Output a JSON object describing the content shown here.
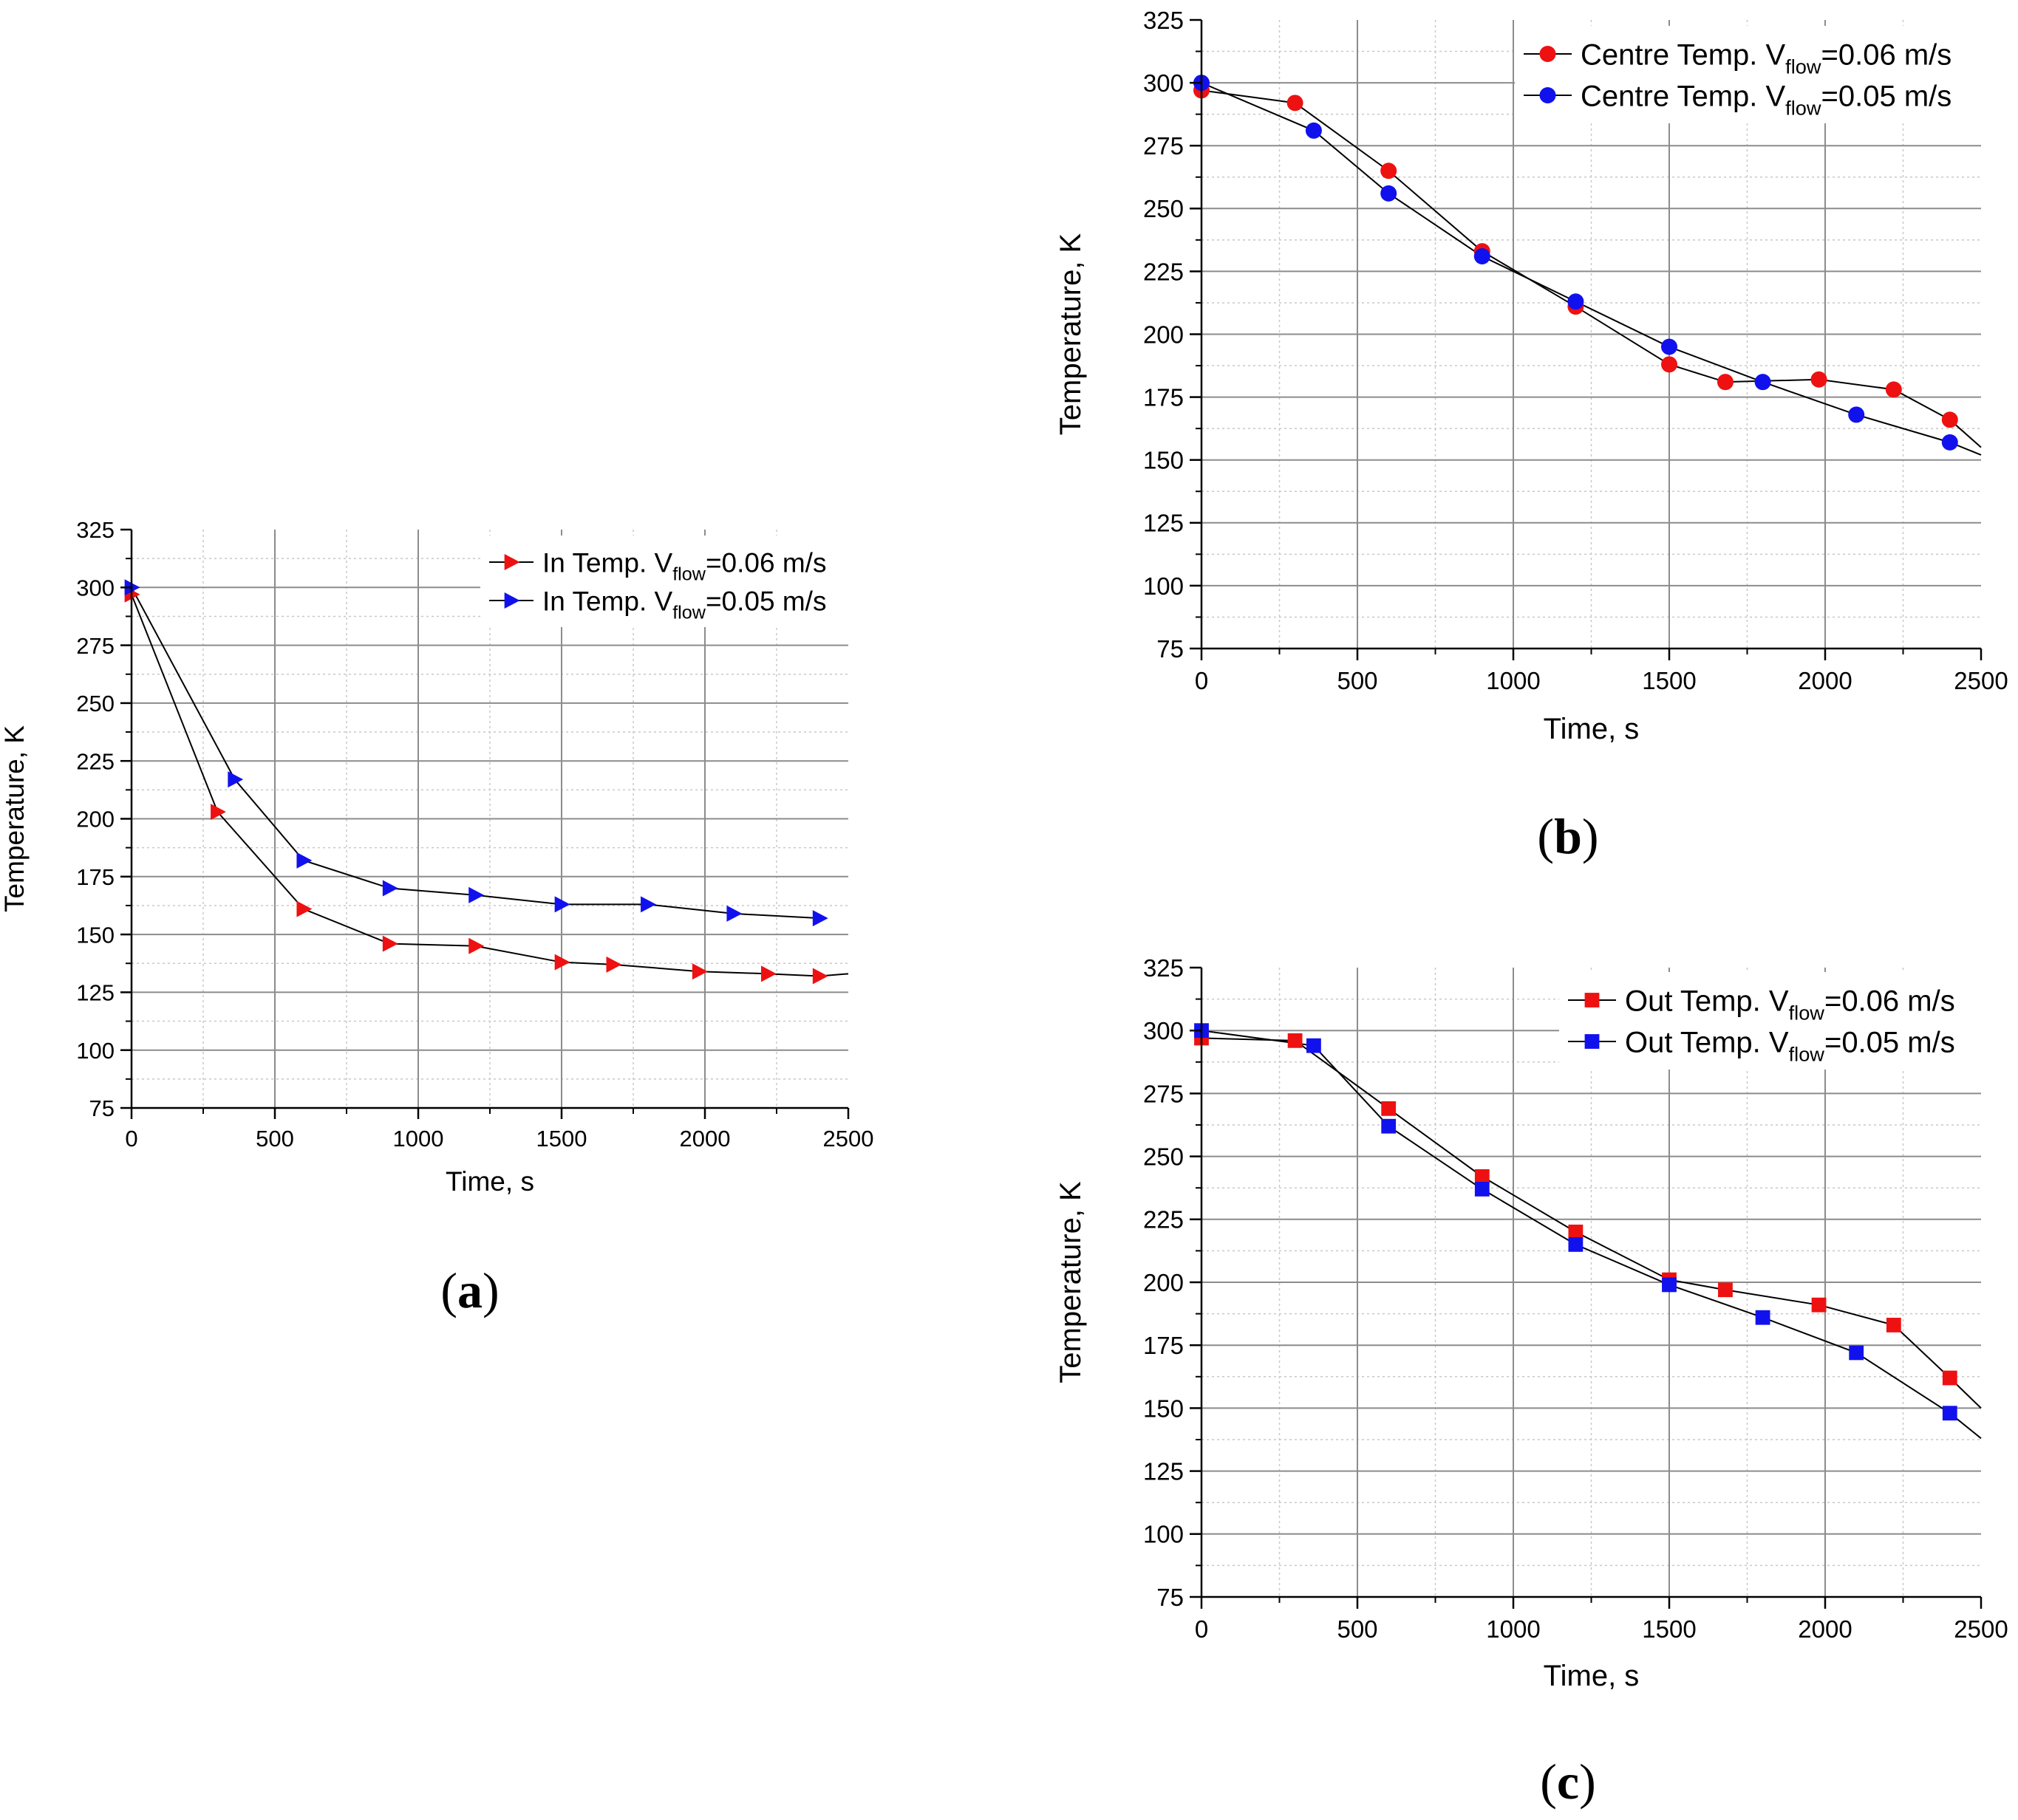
{
  "figure": {
    "panels": [
      {
        "id": "a",
        "label": "(a)",
        "label_letter": "a"
      },
      {
        "id": "b",
        "label": "(b)",
        "label_letter": "b"
      },
      {
        "id": "c",
        "label": "(c)",
        "label_letter": "c"
      }
    ]
  },
  "colors": {
    "red": "#ee1111",
    "blue": "#1111ee",
    "line": "#000000",
    "grid_major": "#8c8c8c",
    "grid_minor": "#c8c8c8"
  },
  "chart_data": [
    {
      "panel": "a",
      "type": "line",
      "marker": "triangle-right",
      "xlabel": "Time, s",
      "ylabel": "Temperature, K",
      "xlim": [
        0,
        2500
      ],
      "ylim": [
        75,
        325
      ],
      "xticks": [
        0,
        500,
        1000,
        1500,
        2000,
        2500
      ],
      "yticks": [
        75,
        100,
        125,
        150,
        175,
        200,
        225,
        250,
        275,
        300,
        325
      ],
      "legend_position": "top-right",
      "series": [
        {
          "name": "In Temp. Vflow=0.06 m/s",
          "legend_prefix": "In Temp. V",
          "legend_sub": "flow",
          "legend_suffix": "=0.06 m/s",
          "color": "#ee1111",
          "x": [
            0,
            300,
            600,
            900,
            1200,
            1500,
            1680,
            1980,
            2220,
            2400,
            2500
          ],
          "y": [
            297,
            203,
            161,
            146,
            145,
            138,
            137,
            134,
            133,
            132,
            133
          ],
          "markers": [
            0,
            300,
            600,
            900,
            1200,
            1500,
            1680,
            1980,
            2220,
            2400
          ]
        },
        {
          "name": "In Temp. Vflow=0.05 m/s",
          "legend_prefix": "In Temp. V",
          "legend_sub": "flow",
          "legend_suffix": "=0.05 m/s",
          "color": "#1111ee",
          "x": [
            0,
            360,
            600,
            900,
            1200,
            1500,
            1800,
            2100,
            2400
          ],
          "y": [
            300,
            217,
            182,
            170,
            167,
            163,
            163,
            159,
            157
          ],
          "markers": [
            0,
            360,
            600,
            900,
            1200,
            1500,
            1800,
            2100,
            2400
          ]
        }
      ]
    },
    {
      "panel": "b",
      "type": "line",
      "marker": "circle",
      "xlabel": "Time, s",
      "ylabel": "Temperature, K",
      "xlim": [
        0,
        2500
      ],
      "ylim": [
        75,
        325
      ],
      "xticks": [
        0,
        500,
        1000,
        1500,
        2000,
        2500
      ],
      "yticks": [
        75,
        100,
        125,
        150,
        175,
        200,
        225,
        250,
        275,
        300,
        325
      ],
      "legend_position": "top-right",
      "series": [
        {
          "name": "Centre Temp. Vflow=0.06 m/s",
          "legend_prefix": "Centre Temp. V",
          "legend_sub": "flow",
          "legend_suffix": "=0.06 m/s",
          "color": "#ee1111",
          "x": [
            0,
            300,
            600,
            900,
            1200,
            1500,
            1680,
            1980,
            2220,
            2400,
            2500
          ],
          "y": [
            297,
            292,
            265,
            233,
            211,
            188,
            181,
            182,
            178,
            166,
            155
          ],
          "markers": [
            0,
            300,
            600,
            900,
            1200,
            1500,
            1680,
            1980,
            2220,
            2400
          ]
        },
        {
          "name": "Centre Temp. Vflow=0.05 m/s",
          "legend_prefix": "Centre Temp. V",
          "legend_sub": "flow",
          "legend_suffix": "=0.05 m/s",
          "color": "#1111ee",
          "x": [
            0,
            360,
            600,
            900,
            1200,
            1500,
            1800,
            2100,
            2400,
            2500
          ],
          "y": [
            300,
            281,
            256,
            231,
            213,
            195,
            181,
            168,
            157,
            152
          ],
          "markers": [
            0,
            360,
            600,
            900,
            1200,
            1500,
            1800,
            2100,
            2400
          ]
        }
      ]
    },
    {
      "panel": "c",
      "type": "line",
      "marker": "square",
      "xlabel": "Time, s",
      "ylabel": "Temperature, K",
      "xlim": [
        0,
        2500
      ],
      "ylim": [
        75,
        325
      ],
      "xticks": [
        0,
        500,
        1000,
        1500,
        2000,
        2500
      ],
      "yticks": [
        75,
        100,
        125,
        150,
        175,
        200,
        225,
        250,
        275,
        300,
        325
      ],
      "legend_position": "top-right",
      "series": [
        {
          "name": "Out Temp. Vflow=0.06 m/s",
          "legend_prefix": "Out Temp. V",
          "legend_sub": "flow",
          "legend_suffix": "=0.06 m/s",
          "color": "#ee1111",
          "x": [
            0,
            300,
            600,
            900,
            1200,
            1500,
            1680,
            1980,
            2220,
            2400,
            2500
          ],
          "y": [
            297,
            296,
            269,
            242,
            220,
            201,
            197,
            191,
            183,
            162,
            150
          ],
          "markers": [
            0,
            300,
            600,
            900,
            1200,
            1500,
            1680,
            1980,
            2220,
            2400
          ]
        },
        {
          "name": "Out Temp. Vflow=0.05 m/s",
          "legend_prefix": "Out Temp. V",
          "legend_sub": "flow",
          "legend_suffix": "=0.05 m/s",
          "color": "#1111ee",
          "x": [
            0,
            360,
            600,
            900,
            1200,
            1500,
            1800,
            2100,
            2400,
            2500
          ],
          "y": [
            300,
            294,
            262,
            237,
            215,
            199,
            186,
            172,
            148,
            138
          ],
          "markers": [
            0,
            360,
            600,
            900,
            1200,
            1500,
            1800,
            2100,
            2400
          ]
        }
      ]
    }
  ]
}
